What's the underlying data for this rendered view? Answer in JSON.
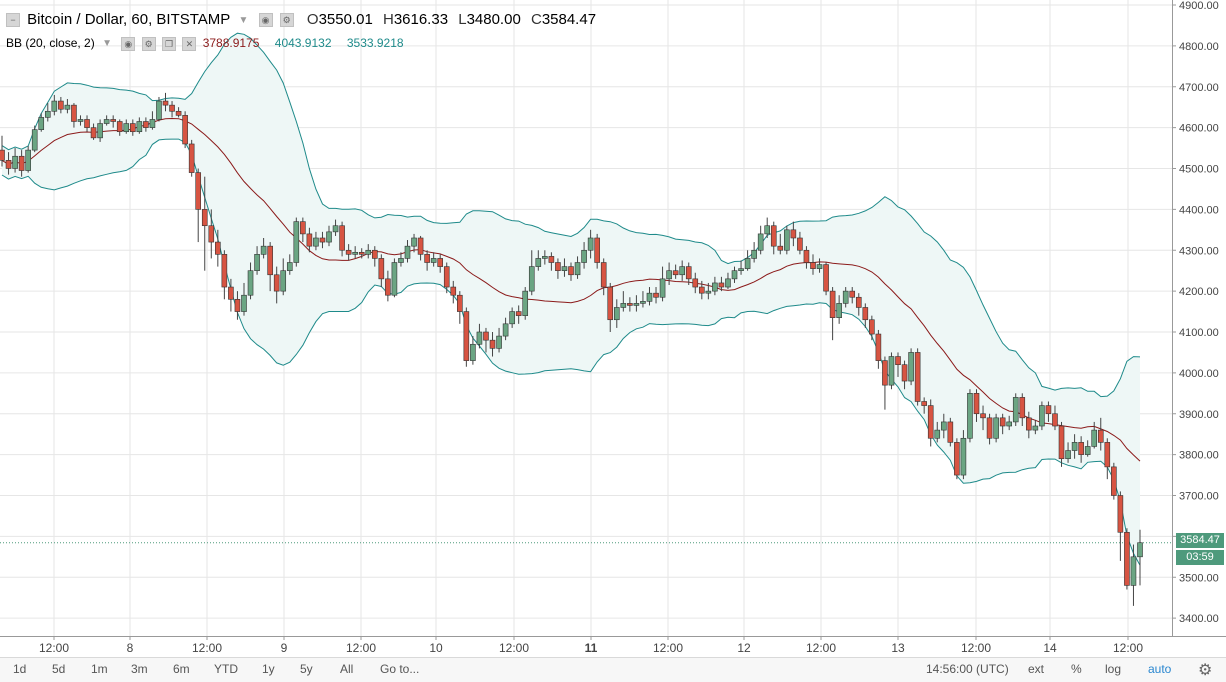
{
  "header": {
    "symbol": "Bitcoin / Dollar, 60, BITSTAMP",
    "o_label": "O",
    "o": "3550.01",
    "h_label": "H",
    "h": "3616.33",
    "l_label": "L",
    "l": "3480.00",
    "c_label": "C",
    "c": "3584.47"
  },
  "indicator": {
    "name": "BB (20, close, 2)",
    "basis": "3788.9175",
    "upper": "4043.9132",
    "lower": "3533.9218"
  },
  "price_tag": {
    "price": "3584.47",
    "countdown": "03:59"
  },
  "bottom_bar": {
    "timeframes": [
      "1d",
      "5d",
      "1m",
      "3m",
      "6m",
      "YTD",
      "1y",
      "5y",
      "All"
    ],
    "goto": "Go to...",
    "time": "14:56:00 (UTC)",
    "ext": "ext",
    "pct": "%",
    "log": "log",
    "auto": "auto"
  },
  "colors": {
    "up": "#6ba583",
    "down": "#d75442",
    "wick": "#444444",
    "basis": "#8b1a1a",
    "band": "#1e8a8a",
    "band_fill": "#eef7f6",
    "grid": "#e6e6e6",
    "accent": "#2a87d0",
    "tag": "#4e9a7c"
  },
  "chart_data": {
    "type": "candlestick",
    "title": "Bitcoin / Dollar, 60, BITSTAMP",
    "y_axis": {
      "ticks": [
        3400,
        3500,
        3600,
        3700,
        3800,
        3900,
        4000,
        4100,
        4200,
        4300,
        4400,
        4500,
        4600,
        4700,
        4800,
        4900
      ],
      "label_format": "0.00",
      "position": "right"
    },
    "x_axis": {
      "labels": [
        "12:00",
        "8",
        "12:00",
        "9",
        "12:00",
        "10",
        "12:00",
        "11",
        "12:00",
        "12",
        "12:00",
        "13",
        "12:00",
        "14",
        "12:00"
      ],
      "bold": [
        "11"
      ]
    },
    "grid": true,
    "last_price": 3584.47,
    "candles": [
      {
        "o": 4545,
        "h": 4580,
        "l": 4505,
        "c": 4520
      },
      {
        "o": 4520,
        "c": 4500,
        "h": 4540,
        "l": 4485
      },
      {
        "o": 4500,
        "c": 4530,
        "h": 4550,
        "l": 4490
      },
      {
        "o": 4530,
        "c": 4495,
        "h": 4545,
        "l": 4480
      },
      {
        "o": 4495,
        "c": 4545,
        "h": 4555,
        "l": 4490
      },
      {
        "o": 4545,
        "c": 4595,
        "h": 4605,
        "l": 4540
      },
      {
        "o": 4595,
        "c": 4625,
        "h": 4635,
        "l": 4590
      },
      {
        "o": 4625,
        "c": 4640,
        "h": 4660,
        "l": 4615
      },
      {
        "o": 4640,
        "c": 4665,
        "h": 4680,
        "l": 4630
      },
      {
        "o": 4665,
        "c": 4645,
        "h": 4675,
        "l": 4635
      },
      {
        "o": 4645,
        "c": 4655,
        "h": 4670,
        "l": 4635
      },
      {
        "o": 4655,
        "c": 4615,
        "h": 4660,
        "l": 4600
      },
      {
        "o": 4615,
        "c": 4620,
        "h": 4630,
        "l": 4605
      },
      {
        "o": 4620,
        "c": 4600,
        "h": 4630,
        "l": 4590
      },
      {
        "o": 4600,
        "c": 4575,
        "h": 4610,
        "l": 4570
      },
      {
        "o": 4575,
        "c": 4610,
        "h": 4620,
        "l": 4565
      },
      {
        "o": 4610,
        "c": 4620,
        "h": 4630,
        "l": 4605
      },
      {
        "o": 4620,
        "c": 4615,
        "h": 4630,
        "l": 4600
      },
      {
        "o": 4615,
        "c": 4590,
        "h": 4620,
        "l": 4580
      },
      {
        "o": 4590,
        "c": 4610,
        "h": 4620,
        "l": 4585
      },
      {
        "o": 4610,
        "c": 4590,
        "h": 4620,
        "l": 4580
      },
      {
        "o": 4590,
        "c": 4615,
        "h": 4625,
        "l": 4585
      },
      {
        "o": 4615,
        "c": 4600,
        "h": 4625,
        "l": 4590
      },
      {
        "o": 4600,
        "c": 4620,
        "h": 4640,
        "l": 4595
      },
      {
        "o": 4620,
        "c": 4665,
        "h": 4675,
        "l": 4615
      },
      {
        "o": 4665,
        "c": 4655,
        "h": 4685,
        "l": 4640
      },
      {
        "o": 4655,
        "c": 4640,
        "h": 4665,
        "l": 4625
      },
      {
        "o": 4640,
        "c": 4630,
        "h": 4650,
        "l": 4625
      },
      {
        "o": 4630,
        "c": 4560,
        "h": 4640,
        "l": 4550
      },
      {
        "o": 4560,
        "c": 4490,
        "h": 4570,
        "l": 4480
      },
      {
        "o": 4490,
        "c": 4400,
        "h": 4500,
        "l": 4320
      },
      {
        "o": 4400,
        "c": 4360,
        "h": 4480,
        "l": 4250
      },
      {
        "o": 4360,
        "c": 4320,
        "h": 4400,
        "l": 4280
      },
      {
        "o": 4320,
        "c": 4290,
        "h": 4350,
        "l": 4260
      },
      {
        "o": 4290,
        "c": 4210,
        "h": 4300,
        "l": 4180
      },
      {
        "o": 4210,
        "c": 4180,
        "h": 4230,
        "l": 4150
      },
      {
        "o": 4180,
        "c": 4150,
        "h": 4200,
        "l": 4130
      },
      {
        "o": 4150,
        "c": 4190,
        "h": 4220,
        "l": 4140
      },
      {
        "o": 4190,
        "c": 4250,
        "h": 4270,
        "l": 4180
      },
      {
        "o": 4250,
        "c": 4290,
        "h": 4310,
        "l": 4240
      },
      {
        "o": 4290,
        "c": 4310,
        "h": 4330,
        "l": 4280
      },
      {
        "o": 4310,
        "c": 4240,
        "h": 4320,
        "l": 4200
      },
      {
        "o": 4240,
        "c": 4200,
        "h": 4260,
        "l": 4170
      },
      {
        "o": 4200,
        "c": 4250,
        "h": 4280,
        "l": 4190
      },
      {
        "o": 4250,
        "c": 4270,
        "h": 4290,
        "l": 4240
      },
      {
        "o": 4270,
        "c": 4370,
        "h": 4380,
        "l": 4260
      },
      {
        "o": 4370,
        "c": 4340,
        "h": 4380,
        "l": 4320
      },
      {
        "o": 4340,
        "c": 4310,
        "h": 4355,
        "l": 4295
      },
      {
        "o": 4310,
        "c": 4330,
        "h": 4345,
        "l": 4300
      },
      {
        "o": 4330,
        "c": 4320,
        "h": 4345,
        "l": 4305
      },
      {
        "o": 4320,
        "c": 4345,
        "h": 4360,
        "l": 4310
      },
      {
        "o": 4345,
        "c": 4360,
        "h": 4375,
        "l": 4335
      },
      {
        "o": 4360,
        "c": 4300,
        "h": 4370,
        "l": 4285
      },
      {
        "o": 4300,
        "c": 4290,
        "h": 4315,
        "l": 4275
      },
      {
        "o": 4290,
        "c": 4295,
        "h": 4310,
        "l": 4280
      },
      {
        "o": 4295,
        "c": 4290,
        "h": 4305,
        "l": 4280
      },
      {
        "o": 4290,
        "c": 4300,
        "h": 4315,
        "l": 4280
      },
      {
        "o": 4300,
        "c": 4280,
        "h": 4310,
        "l": 4260
      },
      {
        "o": 4280,
        "c": 4230,
        "h": 4290,
        "l": 4210
      },
      {
        "o": 4230,
        "c": 4190,
        "h": 4250,
        "l": 4175
      },
      {
        "o": 4190,
        "c": 4270,
        "h": 4280,
        "l": 4185
      },
      {
        "o": 4270,
        "c": 4280,
        "h": 4295,
        "l": 4260
      },
      {
        "o": 4280,
        "c": 4310,
        "h": 4325,
        "l": 4270
      },
      {
        "o": 4310,
        "c": 4330,
        "h": 4340,
        "l": 4295
      },
      {
        "o": 4330,
        "c": 4290,
        "h": 4335,
        "l": 4275
      },
      {
        "o": 4290,
        "c": 4270,
        "h": 4300,
        "l": 4250
      },
      {
        "o": 4270,
        "c": 4280,
        "h": 4295,
        "l": 4260
      },
      {
        "o": 4280,
        "c": 4260,
        "h": 4290,
        "l": 4245
      },
      {
        "o": 4260,
        "c": 4210,
        "h": 4270,
        "l": 4195
      },
      {
        "o": 4210,
        "c": 4190,
        "h": 4225,
        "l": 4170
      },
      {
        "o": 4190,
        "c": 4150,
        "h": 4200,
        "l": 4120
      },
      {
        "o": 4150,
        "c": 4030,
        "h": 4160,
        "l": 4015
      },
      {
        "o": 4030,
        "c": 4070,
        "h": 4090,
        "l": 4020
      },
      {
        "o": 4070,
        "c": 4100,
        "h": 4120,
        "l": 4060
      },
      {
        "o": 4100,
        "c": 4080,
        "h": 4110,
        "l": 4050
      },
      {
        "o": 4080,
        "c": 4060,
        "h": 4100,
        "l": 4040
      },
      {
        "o": 4060,
        "c": 4090,
        "h": 4110,
        "l": 4050
      },
      {
        "o": 4090,
        "c": 4120,
        "h": 4135,
        "l": 4080
      },
      {
        "o": 4120,
        "c": 4150,
        "h": 4160,
        "l": 4110
      },
      {
        "o": 4150,
        "c": 4140,
        "h": 4165,
        "l": 4120
      },
      {
        "o": 4140,
        "c": 4200,
        "h": 4210,
        "l": 4130
      },
      {
        "o": 4200,
        "c": 4260,
        "h": 4300,
        "l": 4190
      },
      {
        "o": 4260,
        "c": 4280,
        "h": 4300,
        "l": 4250
      },
      {
        "o": 4280,
        "c": 4285,
        "h": 4300,
        "l": 4265
      },
      {
        "o": 4285,
        "c": 4270,
        "h": 4295,
        "l": 4250
      },
      {
        "o": 4270,
        "c": 4250,
        "h": 4280,
        "l": 4230
      },
      {
        "o": 4250,
        "c": 4260,
        "h": 4280,
        "l": 4235
      },
      {
        "o": 4260,
        "c": 4240,
        "h": 4270,
        "l": 4225
      },
      {
        "o": 4240,
        "c": 4270,
        "h": 4285,
        "l": 4230
      },
      {
        "o": 4270,
        "c": 4300,
        "h": 4320,
        "l": 4255
      },
      {
        "o": 4300,
        "c": 4330,
        "h": 4350,
        "l": 4280
      },
      {
        "o": 4330,
        "c": 4270,
        "h": 4340,
        "l": 4255
      },
      {
        "o": 4270,
        "c": 4210,
        "h": 4280,
        "l": 4190
      },
      {
        "o": 4210,
        "c": 4130,
        "h": 4220,
        "l": 4100
      },
      {
        "o": 4130,
        "c": 4160,
        "h": 4180,
        "l": 4110
      },
      {
        "o": 4160,
        "c": 4170,
        "h": 4200,
        "l": 4150
      },
      {
        "o": 4170,
        "c": 4165,
        "h": 4185,
        "l": 4150
      },
      {
        "o": 4165,
        "c": 4170,
        "h": 4190,
        "l": 4150
      },
      {
        "o": 4170,
        "c": 4175,
        "h": 4200,
        "l": 4160
      },
      {
        "o": 4175,
        "c": 4195,
        "h": 4210,
        "l": 4165
      },
      {
        "o": 4195,
        "c": 4185,
        "h": 4210,
        "l": 4170
      },
      {
        "o": 4185,
        "c": 4230,
        "h": 4260,
        "l": 4175
      },
      {
        "o": 4230,
        "c": 4250,
        "h": 4270,
        "l": 4215
      },
      {
        "o": 4250,
        "c": 4240,
        "h": 4265,
        "l": 4230
      },
      {
        "o": 4240,
        "c": 4260,
        "h": 4275,
        "l": 4225
      },
      {
        "o": 4260,
        "c": 4230,
        "h": 4270,
        "l": 4215
      },
      {
        "o": 4230,
        "c": 4210,
        "h": 4245,
        "l": 4195
      },
      {
        "o": 4210,
        "c": 4195,
        "h": 4225,
        "l": 4180
      },
      {
        "o": 4195,
        "c": 4200,
        "h": 4220,
        "l": 4180
      },
      {
        "o": 4200,
        "c": 4220,
        "h": 4235,
        "l": 4190
      },
      {
        "o": 4220,
        "c": 4210,
        "h": 4235,
        "l": 4200
      },
      {
        "o": 4210,
        "c": 4230,
        "h": 4245,
        "l": 4205
      },
      {
        "o": 4230,
        "c": 4250,
        "h": 4260,
        "l": 4220
      },
      {
        "o": 4250,
        "c": 4255,
        "h": 4275,
        "l": 4240
      },
      {
        "o": 4255,
        "c": 4280,
        "h": 4300,
        "l": 4250
      },
      {
        "o": 4280,
        "c": 4300,
        "h": 4320,
        "l": 4270
      },
      {
        "o": 4300,
        "c": 4340,
        "h": 4360,
        "l": 4290
      },
      {
        "o": 4340,
        "c": 4360,
        "h": 4380,
        "l": 4330
      },
      {
        "o": 4360,
        "c": 4310,
        "h": 4370,
        "l": 4290
      },
      {
        "o": 4310,
        "c": 4300,
        "h": 4340,
        "l": 4290
      },
      {
        "o": 4300,
        "c": 4350,
        "h": 4360,
        "l": 4290
      },
      {
        "o": 4350,
        "c": 4330,
        "h": 4370,
        "l": 4310
      },
      {
        "o": 4330,
        "c": 4300,
        "h": 4345,
        "l": 4290
      },
      {
        "o": 4300,
        "c": 4270,
        "h": 4310,
        "l": 4255
      },
      {
        "o": 4270,
        "c": 4255,
        "h": 4290,
        "l": 4240
      },
      {
        "o": 4255,
        "c": 4265,
        "h": 4280,
        "l": 4245
      },
      {
        "o": 4265,
        "c": 4200,
        "h": 4270,
        "l": 4190
      },
      {
        "o": 4200,
        "c": 4135,
        "h": 4210,
        "l": 4080
      },
      {
        "o": 4135,
        "c": 4170,
        "h": 4190,
        "l": 4120
      },
      {
        "o": 4170,
        "c": 4200,
        "h": 4210,
        "l": 4160
      },
      {
        "o": 4200,
        "c": 4185,
        "h": 4210,
        "l": 4170
      },
      {
        "o": 4185,
        "c": 4160,
        "h": 4195,
        "l": 4140
      },
      {
        "o": 4160,
        "c": 4130,
        "h": 4170,
        "l": 4110
      },
      {
        "o": 4130,
        "c": 4095,
        "h": 4140,
        "l": 4080
      },
      {
        "o": 4095,
        "c": 4030,
        "h": 4105,
        "l": 4010
      },
      {
        "o": 4030,
        "c": 3970,
        "h": 4040,
        "l": 3910
      },
      {
        "o": 3970,
        "c": 4040,
        "h": 4050,
        "l": 3960
      },
      {
        "o": 4040,
        "c": 4020,
        "h": 4050,
        "l": 3990
      },
      {
        "o": 4020,
        "c": 3980,
        "h": 4030,
        "l": 3960
      },
      {
        "o": 3980,
        "c": 4050,
        "h": 4060,
        "l": 3970
      },
      {
        "o": 4050,
        "c": 3930,
        "h": 4060,
        "l": 3920
      },
      {
        "o": 3930,
        "c": 3920,
        "h": 3940,
        "l": 3900
      },
      {
        "o": 3920,
        "c": 3840,
        "h": 3935,
        "l": 3820
      },
      {
        "o": 3840,
        "c": 3860,
        "h": 3880,
        "l": 3830
      },
      {
        "o": 3860,
        "c": 3880,
        "h": 3900,
        "l": 3840
      },
      {
        "o": 3880,
        "c": 3830,
        "h": 3890,
        "l": 3820
      },
      {
        "o": 3830,
        "c": 3750,
        "h": 3840,
        "l": 3740
      },
      {
        "o": 3750,
        "c": 3840,
        "h": 3860,
        "l": 3740
      },
      {
        "o": 3840,
        "c": 3950,
        "h": 3960,
        "l": 3830
      },
      {
        "o": 3950,
        "c": 3900,
        "h": 3960,
        "l": 3880
      },
      {
        "o": 3900,
        "c": 3890,
        "h": 3920,
        "l": 3860
      },
      {
        "o": 3890,
        "c": 3840,
        "h": 3900,
        "l": 3825
      },
      {
        "o": 3840,
        "c": 3890,
        "h": 3900,
        "l": 3830
      },
      {
        "o": 3890,
        "c": 3870,
        "h": 3900,
        "l": 3850
      },
      {
        "o": 3870,
        "c": 3880,
        "h": 3895,
        "l": 3860
      },
      {
        "o": 3880,
        "c": 3940,
        "h": 3950,
        "l": 3870
      },
      {
        "o": 3940,
        "c": 3890,
        "h": 3950,
        "l": 3870
      },
      {
        "o": 3890,
        "c": 3860,
        "h": 3905,
        "l": 3840
      },
      {
        "o": 3860,
        "c": 3870,
        "h": 3885,
        "l": 3850
      },
      {
        "o": 3870,
        "c": 3920,
        "h": 3930,
        "l": 3860
      },
      {
        "o": 3920,
        "c": 3900,
        "h": 3930,
        "l": 3880
      },
      {
        "o": 3900,
        "c": 3870,
        "h": 3920,
        "l": 3860
      },
      {
        "o": 3870,
        "c": 3790,
        "h": 3880,
        "l": 3770
      },
      {
        "o": 3790,
        "c": 3810,
        "h": 3830,
        "l": 3780
      },
      {
        "o": 3810,
        "c": 3830,
        "h": 3850,
        "l": 3790
      },
      {
        "o": 3830,
        "c": 3800,
        "h": 3845,
        "l": 3780
      },
      {
        "o": 3800,
        "c": 3820,
        "h": 3835,
        "l": 3795
      },
      {
        "o": 3820,
        "c": 3860,
        "h": 3880,
        "l": 3815
      },
      {
        "o": 3860,
        "c": 3830,
        "h": 3890,
        "l": 3810
      },
      {
        "o": 3830,
        "c": 3770,
        "h": 3840,
        "l": 3740
      },
      {
        "o": 3770,
        "c": 3700,
        "h": 3780,
        "l": 3690
      },
      {
        "o": 3700,
        "c": 3610,
        "h": 3710,
        "l": 3540
      },
      {
        "o": 3610,
        "c": 3480,
        "h": 3620,
        "l": 3470
      },
      {
        "o": 3480,
        "c": 3550,
        "h": 3580,
        "l": 3430
      },
      {
        "o": 3550,
        "c": 3584.47,
        "h": 3616.33,
        "l": 3480
      }
    ]
  }
}
